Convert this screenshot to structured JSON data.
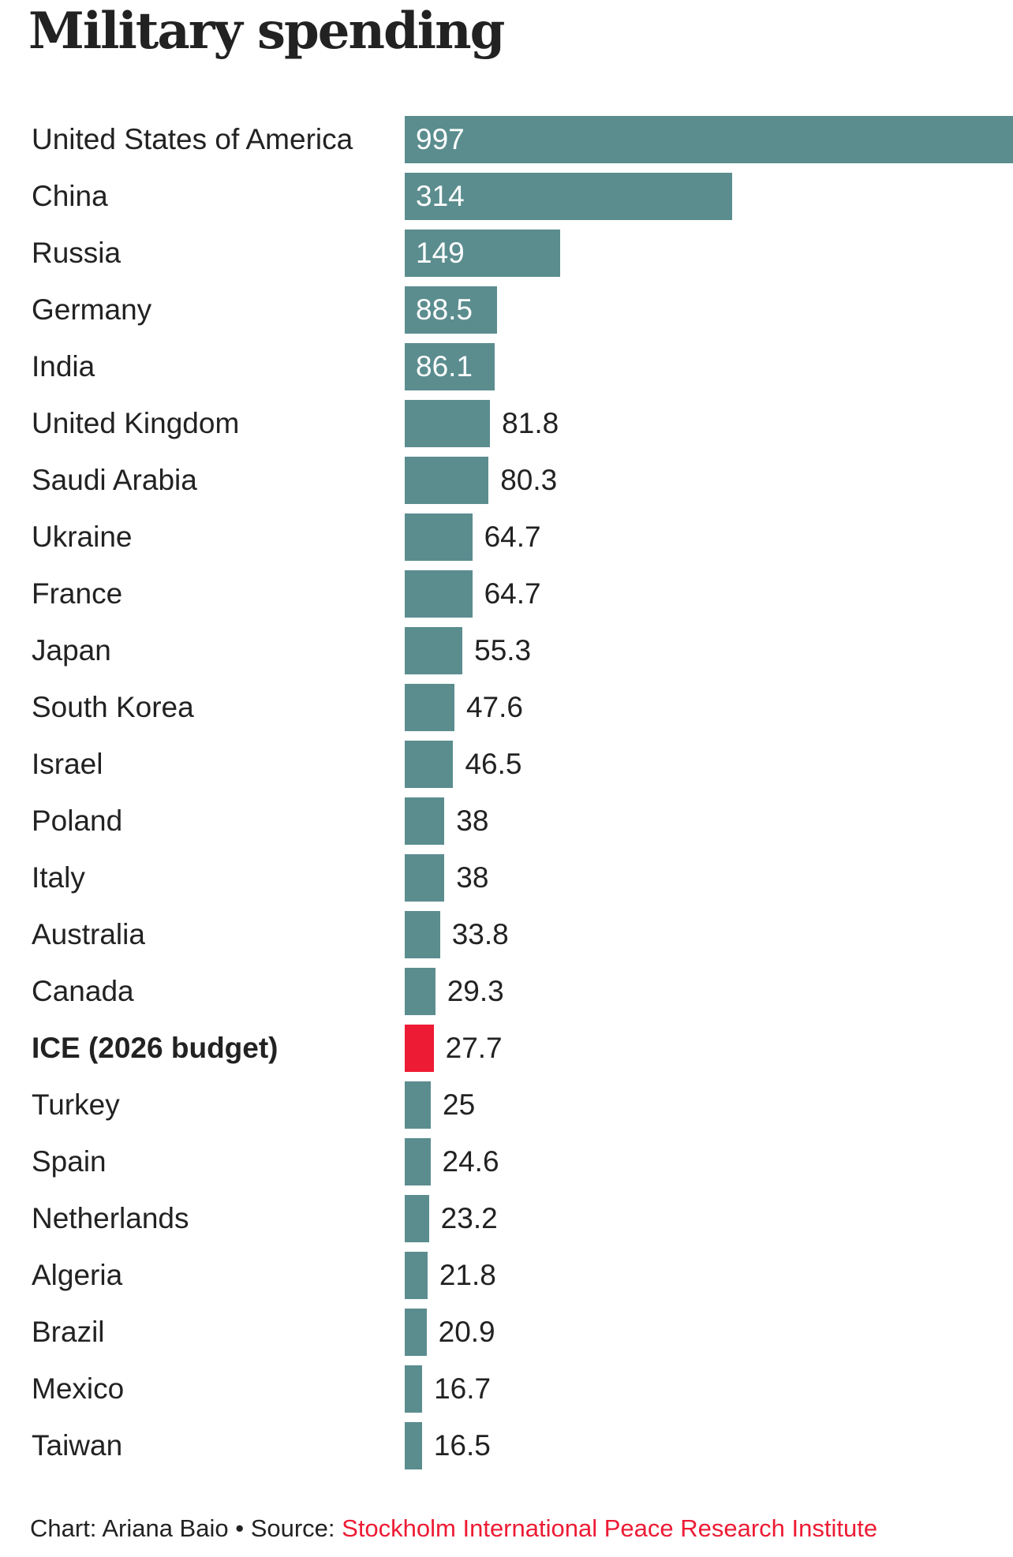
{
  "chart_data": {
    "type": "bar",
    "orientation": "horizontal",
    "title": "Military spending",
    "xlabel": "",
    "ylabel": "",
    "unit_note": "",
    "categories": [
      "United States of America",
      "China",
      "Russia",
      "Germany",
      "India",
      "United Kingdom",
      "Saudi Arabia",
      "Ukraine",
      "France",
      "Japan",
      "South Korea",
      "Israel",
      "Poland",
      "Italy",
      "Australia",
      "Canada",
      "ICE (2026 budget)",
      "Turkey",
      "Spain",
      "Netherlands",
      "Algeria",
      "Brazil",
      "Mexico",
      "Taiwan"
    ],
    "values": [
      997,
      314,
      149,
      88.5,
      86.1,
      81.8,
      80.3,
      64.7,
      64.7,
      55.3,
      47.6,
      46.5,
      38,
      38,
      33.8,
      29.3,
      27.7,
      25,
      24.6,
      23.2,
      21.8,
      20.9,
      16.7,
      16.5
    ],
    "value_labels": [
      "997",
      "314",
      "149",
      "88.5",
      "86.1",
      "81.8",
      "80.3",
      "64.7",
      "64.7",
      "55.3",
      "47.6",
      "46.5",
      "38",
      "38",
      "33.8",
      "29.3",
      "27.7",
      "25",
      "24.6",
      "23.2",
      "21.8",
      "20.9",
      "16.7",
      "16.5"
    ],
    "highlight": [
      "ICE (2026 budget)"
    ],
    "xlim": [
      0,
      583
    ],
    "note": "First bar (997) is truncated at the chart's right edge",
    "grid": false,
    "legend": "none",
    "colors": {
      "default": "#5B8D8F",
      "highlight": "#ED1B34",
      "label_inside": "#ffffff",
      "label_outside": "#222222"
    }
  },
  "footer": {
    "credit": "Chart: Ariana Baio",
    "separator": " • ",
    "source_prefix": "Source: ",
    "source_name": "Stockholm International Peace Research Institute"
  }
}
